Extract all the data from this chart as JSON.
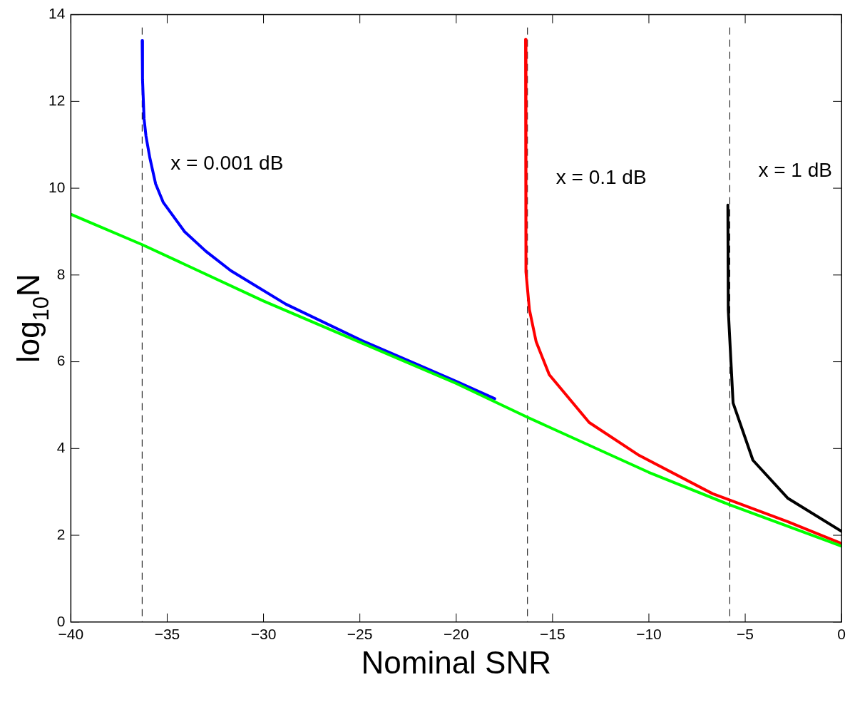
{
  "chart_data": {
    "type": "line",
    "xlabel": "Nominal SNR",
    "ylabel": "log$_{10}$N",
    "xlim": [
      -40,
      0
    ],
    "xticks": [
      -40,
      -35,
      -30,
      -25,
      -20,
      -15,
      -10,
      -5,
      0
    ],
    "ylim": [
      0,
      14
    ],
    "yticks": [
      0,
      2,
      4,
      6,
      8,
      10,
      12,
      14
    ],
    "grid": false,
    "legend": false,
    "marker": "none",
    "line_style": "solid",
    "series": [
      {
        "color": "#00ff00",
        "x": [
          -40,
          -36.3,
          -30,
          -25,
          -20,
          -16.3,
          -10,
          -5.8,
          0
        ],
        "values": [
          9.4,
          8.7,
          7.4,
          6.45,
          5.5,
          4.72,
          3.45,
          2.7,
          1.75
        ]
      },
      {
        "color": "#0000ff",
        "x": [
          -36.3,
          -36.28,
          -36.2,
          -36.1,
          -35.9,
          -35.6,
          -35.2,
          -34.1,
          -33,
          -31.7,
          -28.85,
          -24.9,
          -20,
          -18
        ],
        "values": [
          13.4,
          12.5,
          11.6,
          11.2,
          10.7,
          10.1,
          9.67,
          9.0,
          8.55,
          8.1,
          7.33,
          6.49,
          5.55,
          5.15
        ]
      },
      {
        "color": "#ff0000",
        "x": [
          -16.4,
          -16.38,
          -16.2,
          -15.85,
          -15.17,
          -13.1,
          -10.5,
          -6.7,
          -2.78,
          0
        ],
        "values": [
          13.43,
          8.07,
          7.2,
          6.46,
          5.7,
          4.6,
          3.84,
          2.96,
          2.31,
          1.81
        ]
      },
      {
        "color": "#000000",
        "x": [
          -5.9,
          -5.88,
          -5.63,
          -4.6,
          -2.78,
          0
        ],
        "values": [
          9.61,
          7.2,
          5.05,
          3.73,
          2.85,
          2.09
        ]
      }
    ],
    "ref_lines": [
      {
        "axis": "x",
        "value": -36.3,
        "color": "#000000",
        "line_style": "dashed"
      },
      {
        "axis": "x",
        "value": -16.3,
        "color": "#000000",
        "line_style": "dashed"
      },
      {
        "axis": "x",
        "value": -5.8,
        "color": "#000000",
        "line_style": "dashed"
      }
    ],
    "annotations": [
      "x = 0.001 dB",
      "x = 0.1 dB",
      "x = 1 dB"
    ]
  }
}
